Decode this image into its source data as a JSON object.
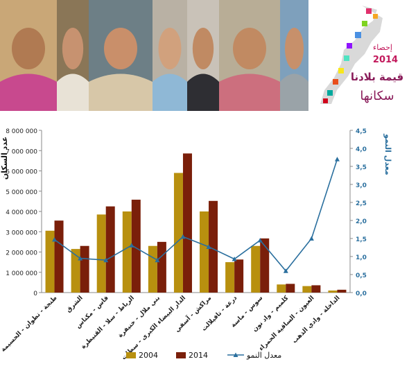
{
  "logo": {
    "line1": "إحصاء",
    "line2": "2014",
    "line3": "قيمة بلادنا",
    "line4": "سكانها"
  },
  "photos": [
    {
      "name": "woman-pink-headscarf-photo",
      "bg": "#c9a777",
      "skin": "#b07a52",
      "cloth": "#c8498e"
    },
    {
      "name": "woman-white-headscarf-photo",
      "bg": "#8a7657",
      "skin": "#c79270",
      "cloth": "#e8e2d6"
    },
    {
      "name": "older-man-photo",
      "bg": "#6d7f86",
      "skin": "#c98f6a",
      "cloth": "#d7c7a8"
    },
    {
      "name": "young-woman-photo",
      "bg": "#b9b1a4",
      "skin": "#d1a17d",
      "cloth": "#8fb8d6"
    },
    {
      "name": "man-in-suit-photo",
      "bg": "#c9c2b8",
      "skin": "#c08a63",
      "cloth": "#2e2e33"
    },
    {
      "name": "woman-and-child-photo",
      "bg": "#b8ad96",
      "skin": "#c18a62",
      "cloth": "#cc6f7e"
    },
    {
      "name": "teenage-boy-photo",
      "bg": "#7ea0bc",
      "skin": "#c7906b",
      "cloth": "#9aa3a8"
    }
  ],
  "colors": {
    "bar2004": "#b8900f",
    "bar2014": "#7a1f0a",
    "line": "#2a6f9e",
    "axisRight": "#2a6f9e"
  },
  "chart_data": {
    "type": "bar",
    "title": "",
    "ylabel": "عدد السكان",
    "y2label": "معدل النمو",
    "ylim": [
      0,
      8000000
    ],
    "y2lim": [
      0,
      4.5
    ],
    "yticks": [
      "0",
      "1 000 000",
      "2 000 000",
      "3 000 000",
      "4 000 000",
      "5 000 000",
      "6 000 000",
      "7 000 000",
      "8 000 000"
    ],
    "y2ticks": [
      "0,0",
      "0,5",
      "1,0",
      "1,5",
      "2,0",
      "2,5",
      "3,0",
      "3,5",
      "4,0",
      "4,5"
    ],
    "grid": false,
    "legend_position": "bottom",
    "categories": [
      "طنجة - تطوان - الحسيمة",
      "الشرق",
      "فاس - مكناس",
      "الرباط - سلا - القنيطرة",
      "بني ملال - خنيفرة",
      "الدار البيضاء الكبرى - سطات",
      "مراكش - آسفي",
      "درعة - تافيلالت",
      "سوس - ماسة",
      "كلميم - واد نون",
      "العيون - الساقية الحمراء",
      "الداخلة - وادي الذهب"
    ],
    "series": [
      {
        "name": "2004",
        "kind": "bar",
        "axis": "left",
        "values": [
          3050000,
          2150000,
          3850000,
          4000000,
          2300000,
          5900000,
          4000000,
          1500000,
          2300000,
          400000,
          320000,
          100000
        ]
      },
      {
        "name": "2014",
        "kind": "bar",
        "axis": "left",
        "values": [
          3550000,
          2300000,
          4250000,
          4580000,
          2500000,
          6860000,
          4520000,
          1630000,
          2670000,
          430000,
          360000,
          140000
        ]
      },
      {
        "name": "معدل النمو",
        "kind": "line",
        "axis": "right",
        "values": [
          1.47,
          0.95,
          0.9,
          1.31,
          0.9,
          1.55,
          1.27,
          0.93,
          1.45,
          0.6,
          1.5,
          3.7
        ]
      }
    ]
  }
}
